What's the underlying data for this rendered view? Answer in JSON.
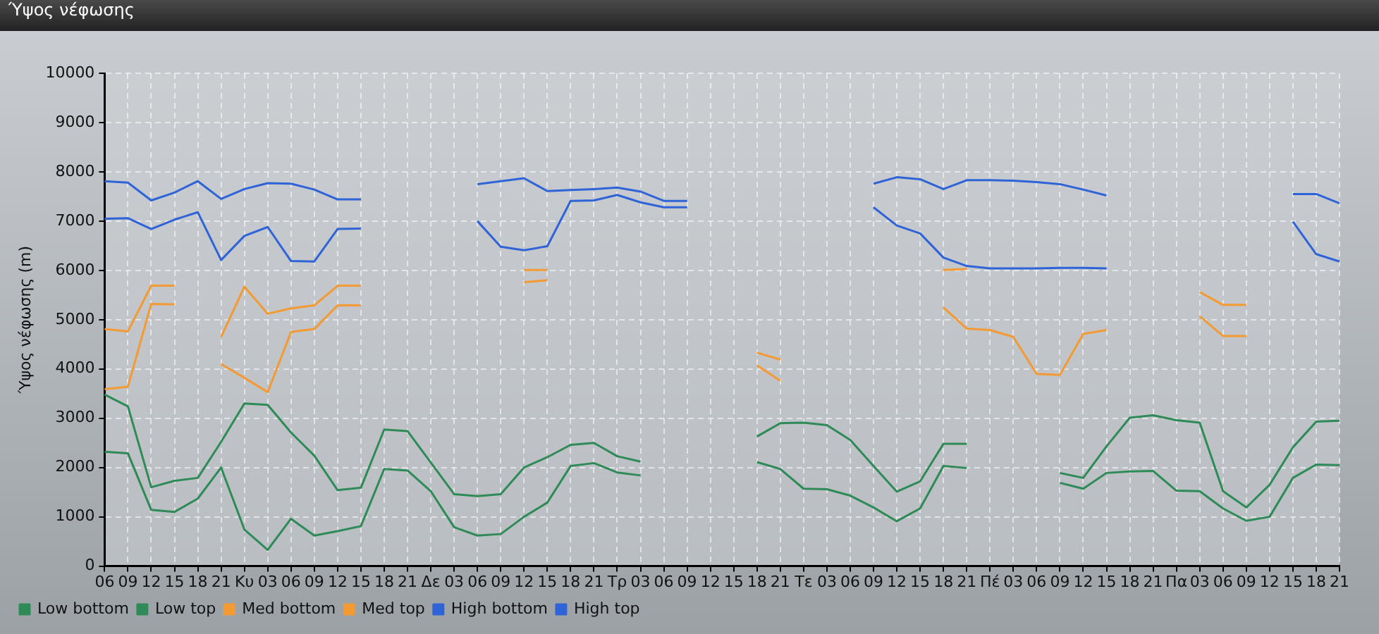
{
  "chart_data": {
    "type": "line",
    "title": "Ύψος νέφωσης",
    "ylabel": "Ύψος νέφωσης (m)",
    "categories": [
      "06",
      "09",
      "12",
      "15",
      "18",
      "21",
      "Κυ",
      "03",
      "06",
      "09",
      "12",
      "15",
      "18",
      "21",
      "Δε",
      "03",
      "06",
      "09",
      "12",
      "15",
      "18",
      "21",
      "Τρ",
      "03",
      "06",
      "09",
      "12",
      "15",
      "18",
      "21",
      "Τε",
      "03",
      "06",
      "09",
      "12",
      "15",
      "18",
      "21",
      "Πέ",
      "03",
      "06",
      "09",
      "12",
      "15",
      "18",
      "21",
      "Πα",
      "03",
      "06",
      "09",
      "12",
      "15",
      "18",
      "21"
    ],
    "series": [
      {
        "name": "Low bottom",
        "color": "#2e8b57",
        "values": [
          2320,
          2290,
          1140,
          1100,
          1370,
          2000,
          740,
          330,
          960,
          620,
          710,
          810,
          1970,
          1940,
          1520,
          790,
          620,
          650,
          1000,
          1290,
          2030,
          2090,
          1900,
          1840,
          null,
          null,
          null,
          null,
          2110,
          1970,
          1570,
          1560,
          1430,
          1190,
          910,
          1170,
          2030,
          1990,
          null,
          null,
          null,
          1690,
          1570,
          1890,
          1920,
          1930,
          1530,
          1520,
          1170,
          920,
          1000,
          1790,
          2060,
          2050
        ]
      },
      {
        "name": "Low top",
        "color": "#2e8b57",
        "values": [
          3480,
          3240,
          1600,
          1730,
          1790,
          2520,
          3300,
          3270,
          2710,
          2240,
          1540,
          1590,
          2770,
          2740,
          2100,
          1460,
          1420,
          1460,
          2000,
          2210,
          2460,
          2500,
          2230,
          2120,
          null,
          null,
          null,
          null,
          2630,
          2900,
          2910,
          2860,
          2560,
          2030,
          1510,
          1720,
          2480,
          2480,
          null,
          null,
          null,
          1890,
          1790,
          2430,
          3010,
          3060,
          2960,
          2910,
          1520,
          1190,
          1650,
          2410,
          2930,
          2950
        ]
      },
      {
        "name": "Med bottom",
        "color": "#f39a32",
        "values": [
          3590,
          3640,
          5320,
          5310,
          null,
          4100,
          3820,
          3530,
          4750,
          4810,
          5290,
          5290,
          null,
          null,
          null,
          null,
          null,
          null,
          5760,
          5800,
          null,
          null,
          null,
          null,
          null,
          null,
          null,
          null,
          4070,
          3760,
          null,
          null,
          null,
          null,
          null,
          null,
          5250,
          4820,
          4790,
          4650,
          3900,
          3880,
          4710,
          4790,
          null,
          null,
          null,
          5070,
          4670,
          4670,
          null,
          null,
          null,
          null
        ]
      },
      {
        "name": "Med top",
        "color": "#f39a32",
        "values": [
          4810,
          4760,
          5690,
          5690,
          null,
          4650,
          5670,
          5120,
          5230,
          5290,
          5690,
          5690,
          null,
          null,
          null,
          null,
          null,
          null,
          6010,
          6010,
          null,
          null,
          null,
          null,
          null,
          null,
          null,
          null,
          4330,
          4190,
          null,
          null,
          null,
          null,
          null,
          null,
          6010,
          6030,
          null,
          null,
          null,
          null,
          null,
          null,
          null,
          null,
          null,
          5560,
          5300,
          5300,
          null,
          null,
          null,
          null
        ]
      },
      {
        "name": "High bottom",
        "color": "#2f63d8",
        "values": [
          7050,
          7060,
          6840,
          7030,
          7180,
          6210,
          6700,
          6880,
          6190,
          6180,
          6840,
          6850,
          null,
          null,
          null,
          null,
          7000,
          6480,
          6410,
          6490,
          7410,
          7420,
          7530,
          7380,
          7280,
          7280,
          null,
          null,
          null,
          null,
          null,
          null,
          null,
          7280,
          6910,
          6750,
          6260,
          6090,
          6040,
          6040,
          6040,
          6050,
          6050,
          6040,
          null,
          null,
          null,
          null,
          null,
          null,
          null,
          6990,
          6330,
          6180
        ]
      },
      {
        "name": "High top",
        "color": "#2f63d8",
        "values": [
          7810,
          7780,
          7420,
          7580,
          7810,
          7450,
          7650,
          7770,
          7760,
          7640,
          7440,
          7440,
          null,
          null,
          null,
          null,
          7750,
          7810,
          7870,
          7610,
          7630,
          7650,
          7680,
          7600,
          7410,
          7410,
          null,
          null,
          null,
          null,
          null,
          null,
          null,
          7760,
          7890,
          7850,
          7650,
          7830,
          7830,
          7820,
          7790,
          7750,
          7640,
          7520,
          null,
          null,
          null,
          null,
          null,
          null,
          null,
          7550,
          7550,
          7360
        ]
      }
    ],
    "ylim": [
      0,
      10000
    ],
    "yticks": [
      0,
      1000,
      2000,
      3000,
      4000,
      5000,
      6000,
      7000,
      8000,
      9000,
      10000
    ],
    "grid": true,
    "legend": "bottom left",
    "marker": "none",
    "line_style": "solid"
  }
}
